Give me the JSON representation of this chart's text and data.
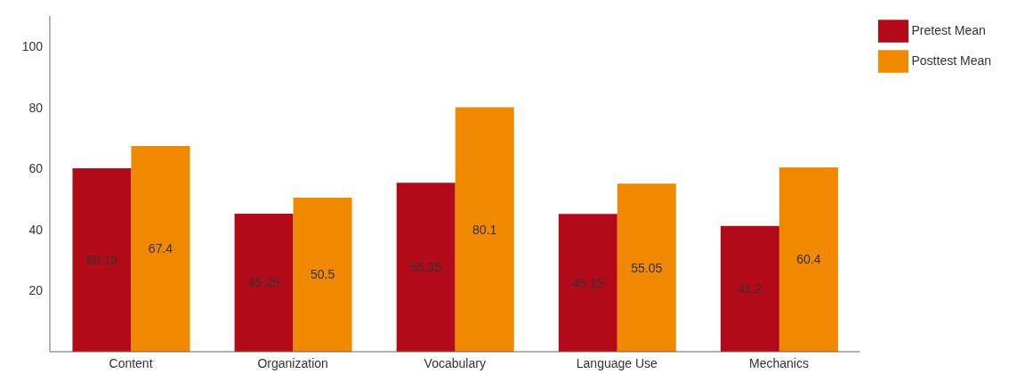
{
  "chart_data": {
    "type": "bar",
    "categories": [
      "Content",
      "Organization",
      "Vocabulary",
      "Language Use",
      "Mechanics"
    ],
    "series": [
      {
        "name": "Pretest Mean",
        "color": "#b30a1a",
        "values": [
          60.13,
          45.25,
          55.35,
          45.15,
          41.2
        ]
      },
      {
        "name": "Posttest Mean",
        "color": "#f08800",
        "values": [
          67.4,
          50.5,
          80.1,
          55.05,
          60.4
        ]
      }
    ],
    "ylim": [
      0,
      110
    ],
    "yticks": [
      20,
      40,
      60,
      80,
      100
    ],
    "data_labels": true,
    "legend": "top right",
    "grid": false
  }
}
